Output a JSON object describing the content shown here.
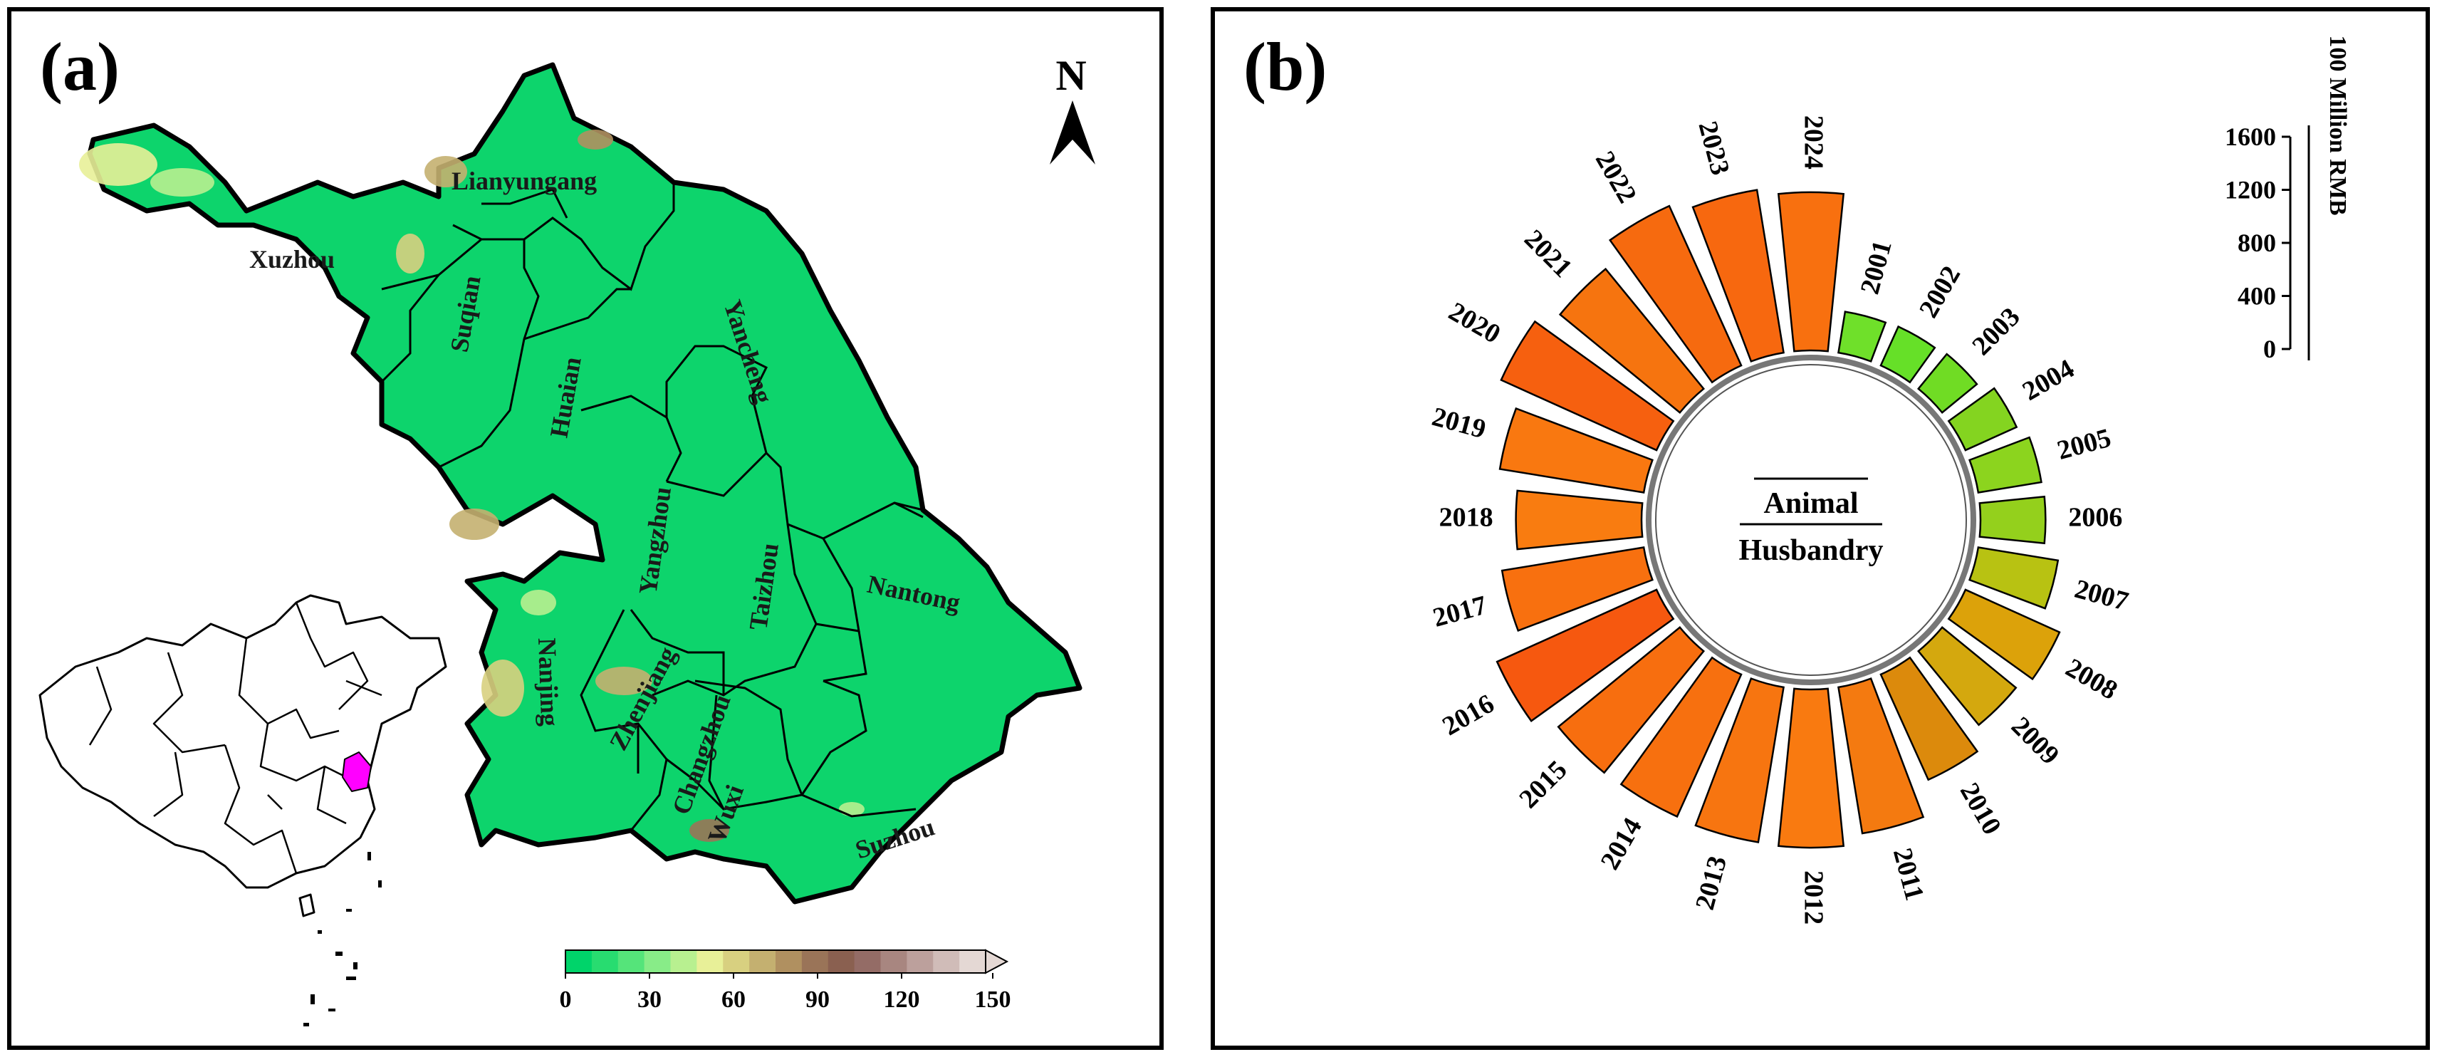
{
  "panel_a": {
    "label": "(a)",
    "north": "N",
    "cities": [
      {
        "name": "Xuzhou"
      },
      {
        "name": "Lianyungang"
      },
      {
        "name": "Suqian"
      },
      {
        "name": "Huaian"
      },
      {
        "name": "Yancheng"
      },
      {
        "name": "Yangzhou"
      },
      {
        "name": "Taizhou"
      },
      {
        "name": "Nantong"
      },
      {
        "name": "Nanjing"
      },
      {
        "name": "Zhenjiang"
      },
      {
        "name": "Changzhou"
      },
      {
        "name": "Wuxi"
      },
      {
        "name": "Suzhou"
      }
    ],
    "legend": {
      "ticks": [
        "0",
        "30",
        "60",
        "90",
        "120",
        "150"
      ],
      "colors": [
        "#00d46a",
        "#28dc70",
        "#55e47a",
        "#88ec88",
        "#b8f090",
        "#e8f098",
        "#d8d080",
        "#c4b070",
        "#b09060",
        "#9a7458",
        "#8a6050",
        "#946c66",
        "#a88680",
        "#bca09c",
        "#d0bcb8",
        "#e4d8d4"
      ]
    },
    "colors": {
      "land": "#0dd46c",
      "highlight": "#ff00ff"
    }
  },
  "panel_b": {
    "label": "(b)",
    "center_label_1": "Animal",
    "center_label_2": "Husbandry",
    "scale_title": "100 Million RMB",
    "scale_ticks": [
      "0",
      "400",
      "800",
      "1200",
      "1600"
    ],
    "chart_data": {
      "type": "bar",
      "layout": "radial",
      "categories": [
        "2001",
        "2002",
        "2003",
        "2004",
        "2005",
        "2006",
        "2007",
        "2008",
        "2009",
        "2010",
        "2011",
        "2012",
        "2013",
        "2014",
        "2015",
        "2016",
        "2017",
        "2018",
        "2019",
        "2020",
        "2021",
        "2022",
        "2023",
        "2024"
      ],
      "values": [
        370,
        380,
        400,
        500,
        570,
        580,
        720,
        920,
        850,
        1030,
        1320,
        1410,
        1400,
        1390,
        1400,
        1560,
        1280,
        1120,
        1300,
        1520,
        1380,
        1560,
        1470,
        1410
      ],
      "colors": [
        "#6fe02a",
        "#66e028",
        "#70dc24",
        "#84d420",
        "#8cd41e",
        "#94d01c",
        "#b8c212",
        "#dca20a",
        "#d4a80e",
        "#dc8a0c",
        "#f47a10",
        "#f97a10",
        "#f77510",
        "#f7700f",
        "#f76e0f",
        "#f6580f",
        "#f8700f",
        "#f97c10",
        "#f97810",
        "#f6600f",
        "#f6740f",
        "#f66a0f",
        "#f7680f",
        "#f8700f"
      ],
      "ylim": [
        0,
        1600
      ],
      "ylabel": "100 Million RMB"
    }
  }
}
